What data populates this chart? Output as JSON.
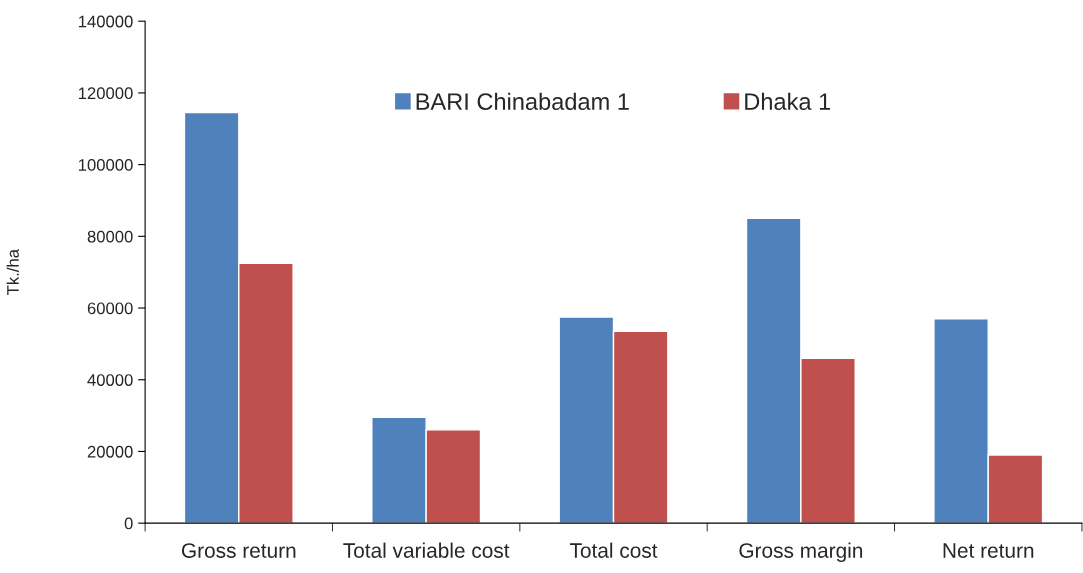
{
  "chart_data": {
    "type": "bar",
    "ylabel": "Tk./ha",
    "categories": [
      "Gross return",
      "Total variable cost",
      "Total cost",
      "Gross margin",
      "Net return"
    ],
    "series": [
      {
        "name": "BARI Chinabadam 1",
        "color": "#4f81bd",
        "values": [
          114500,
          29500,
          57500,
          85000,
          57000
        ]
      },
      {
        "name": "Dhaka 1",
        "color": "#c0504d",
        "values": [
          72500,
          26000,
          53500,
          46000,
          19000
        ]
      }
    ],
    "ylim": [
      0,
      140000
    ],
    "yticks": [
      0,
      20000,
      40000,
      60000,
      80000,
      100000,
      120000,
      140000
    ],
    "grid": false,
    "legend": "top"
  }
}
